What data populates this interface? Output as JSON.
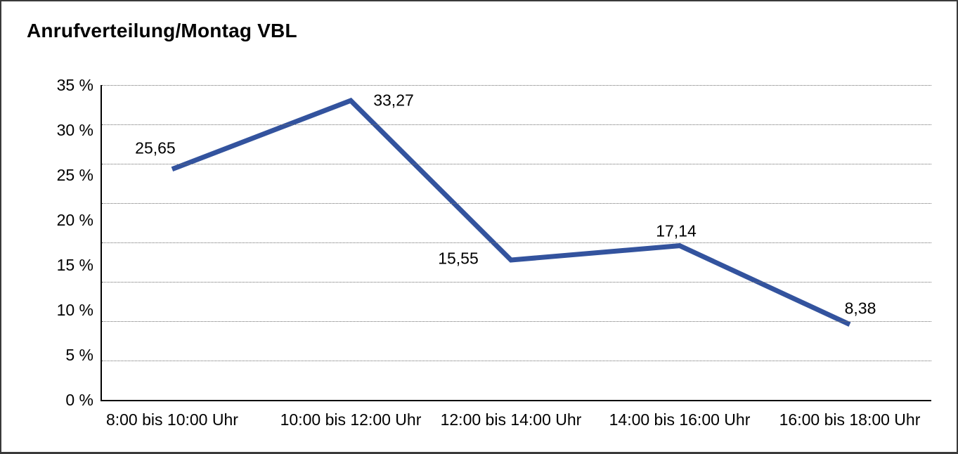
{
  "chart_data": {
    "type": "line",
    "title": "Anrufverteilung/Montag VBL",
    "categories": [
      "8:00 bis 10:00 Uhr",
      "10:00 bis 12:00 Uhr",
      "12:00 bis 14:00 Uhr",
      "14:00 bis 16:00 Uhr",
      "16:00 bis 18:00 Uhr"
    ],
    "values": [
      25.65,
      33.27,
      15.55,
      17.14,
      8.38
    ],
    "value_labels": [
      "25,65",
      "33,27",
      "15,55",
      "17,14",
      "8,38"
    ],
    "y_tick_values": [
      0,
      5,
      10,
      15,
      20,
      25,
      30,
      35
    ],
    "y_tick_labels": [
      "0 %",
      "5 %",
      "10 %",
      "15 %",
      "20 %",
      "25 %",
      "30 %",
      "35 %"
    ],
    "ylim": [
      0,
      35
    ],
    "line_color": "#33539e",
    "text_color": "#000000",
    "grid": {
      "horizontal": true,
      "style": "dotted",
      "divisions": 8
    },
    "legend": "none"
  }
}
